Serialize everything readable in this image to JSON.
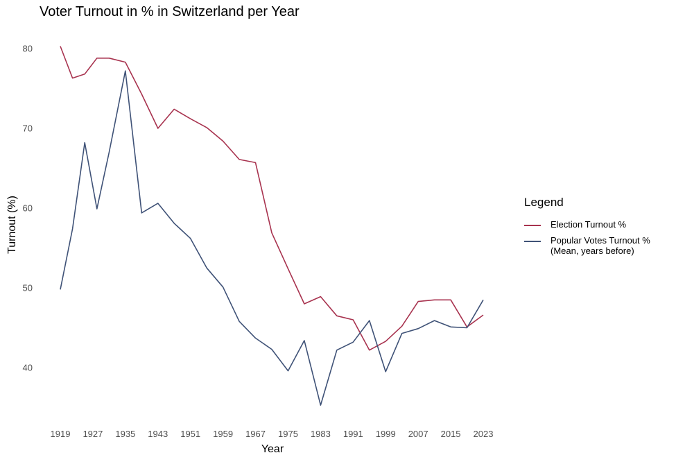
{
  "chart_data": {
    "type": "line",
    "title": "Voter Turnout in % in Switzerland per Year",
    "xlabel": "Year",
    "ylabel": "Turnout (%)",
    "x_ticks": [
      1919,
      1927,
      1935,
      1943,
      1951,
      1959,
      1967,
      1975,
      1983,
      1991,
      1999,
      2007,
      2015,
      2023
    ],
    "y_ticks": [
      40,
      50,
      60,
      70,
      80
    ],
    "xlim": [
      1919,
      2023
    ],
    "ylim": [
      35,
      80
    ],
    "grid": false,
    "legend": {
      "title": "Legend",
      "position": "right"
    },
    "series": [
      {
        "name": "Election Turnout %",
        "color": "#a8334f",
        "x": [
          1919,
          1922,
          1925,
          1928,
          1931,
          1935,
          1939,
          1943,
          1947,
          1951,
          1955,
          1959,
          1963,
          1967,
          1971,
          1975,
          1979,
          1983,
          1987,
          1991,
          1995,
          1999,
          2003,
          2007,
          2011,
          2015,
          2019,
          2023
        ],
        "y": [
          80.3,
          76.3,
          76.8,
          78.8,
          78.8,
          78.3,
          74.3,
          70.0,
          72.4,
          71.2,
          70.1,
          68.4,
          66.1,
          65.7,
          56.9,
          52.4,
          48.0,
          48.9,
          46.5,
          46.0,
          42.2,
          43.3,
          45.2,
          48.3,
          48.5,
          48.5,
          45.1,
          46.6
        ]
      },
      {
        "name": "Popular Votes Turnout %\n(Mean, years before)",
        "color": "#3f5277",
        "x": [
          1919,
          1922,
          1925,
          1928,
          1931,
          1935,
          1939,
          1943,
          1947,
          1951,
          1955,
          1959,
          1963,
          1967,
          1971,
          1975,
          1979,
          1983,
          1987,
          1991,
          1995,
          1999,
          2003,
          2007,
          2011,
          2015,
          2019,
          2023
        ],
        "y": [
          49.8,
          57.4,
          68.2,
          59.9,
          67.0,
          77.2,
          59.4,
          60.6,
          58.1,
          56.2,
          52.5,
          50.1,
          45.8,
          43.7,
          42.3,
          39.6,
          43.4,
          35.3,
          42.2,
          43.2,
          45.9,
          39.5,
          44.3,
          44.9,
          45.9,
          45.1,
          45.0,
          48.5
        ]
      }
    ]
  }
}
